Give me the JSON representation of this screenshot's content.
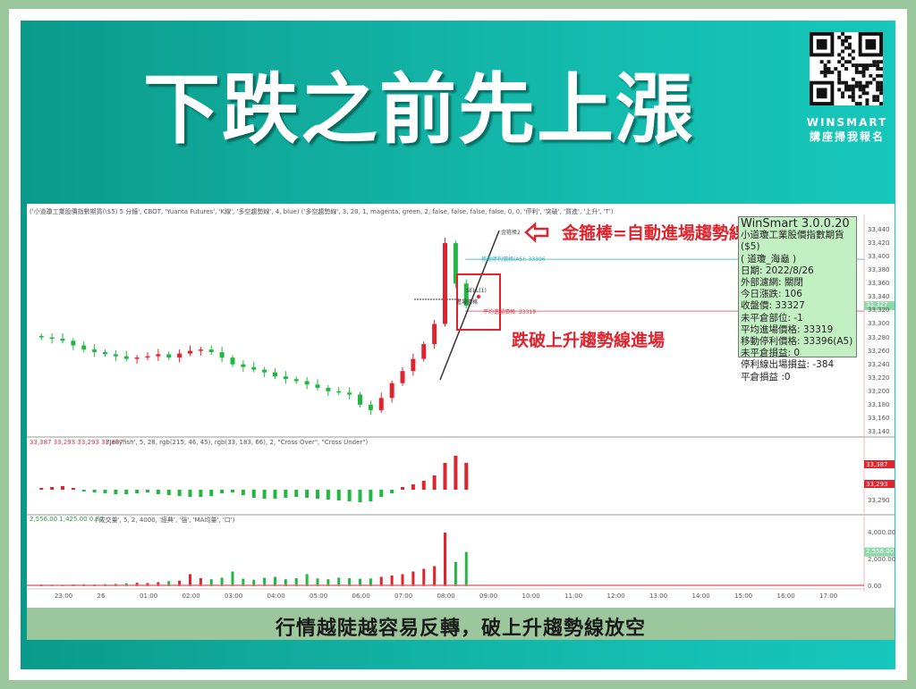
{
  "title": "下跌之前先上漲",
  "brand": {
    "name": "WINSMART",
    "subtitle": "講座掃我報名",
    "qr_icon": "qr-code-icon"
  },
  "caption": "行情越陡越容易反轉，破上升趨勢線放空",
  "colors": {
    "teal": "#14bdb0",
    "frame": "#9cc79c",
    "bull": "#e0232c",
    "bear": "#21b742",
    "annotation": "#e0232c",
    "info_bg": "#c3f0c3"
  },
  "annotations": {
    "trendline": "金箍棒=自動進場趨勢線",
    "entry": "跌破上升趨勢線進場",
    "arrow_icon": "left-arrow-icon"
  },
  "chart_labels": {
    "trend_tag": "金箍棒2",
    "trail_stop": "移動停利價格(A5): 33396",
    "sell": "SELL(1)",
    "entry_price": "進場價格",
    "avg_entry": "平均進場價格: 33319"
  },
  "toolbar_text": "('小道瓊工業股價指數期貨(\\$5) 5 分鐘', CBOT, 'Yuanta Futures', 'K線', '多空趨勢線', 4, blue) ('多空趨勢線', 3, 20, 1, magenta, green, 2, false, false, false, false, 0, 0, '停利', '突破', '買進', '上升', 'T')",
  "info_box": {
    "lines": [
      "WinSmart 3.0.0.20",
      "小道瓊工業股價指數期貨($5)",
      "( 道瓊_海龜 )",
      "日期: 2022/8/26",
      "外部濾網: 關閉",
      "今日漲跌: 106",
      "收盤價: 33327",
      "未平倉部位: -1",
      "平均進場價格: 33319",
      "移動停利價格: 33396(A5)",
      "未平倉損益: 0",
      "停利線出場損益: -384",
      "平倉損益 :0"
    ]
  },
  "chart_data": [
    {
      "type": "candlestick",
      "title": "",
      "x": [
        "22:30",
        "22:45",
        "23:00",
        "23:15",
        "23:30",
        "23:45",
        "00:00",
        "00:15",
        "00:30",
        "00:45",
        "01:00",
        "01:15",
        "01:30",
        "01:45",
        "02:00",
        "02:15",
        "02:30",
        "02:45",
        "03:00",
        "03:15",
        "03:30",
        "03:45",
        "04:00",
        "04:15",
        "04:30",
        "04:45",
        "05:00",
        "05:15",
        "05:30",
        "05:45",
        "06:00",
        "06:15",
        "06:30",
        "06:45",
        "07:00",
        "07:15",
        "07:30",
        "07:45",
        "08:00",
        "08:15",
        "08:30"
      ],
      "close": [
        33280,
        33278,
        33275,
        33268,
        33262,
        33258,
        33255,
        33252,
        33248,
        33250,
        33252,
        33255,
        33250,
        33256,
        33260,
        33262,
        33258,
        33250,
        33240,
        33236,
        33232,
        33228,
        33222,
        33218,
        33215,
        33210,
        33205,
        33200,
        33198,
        33195,
        33180,
        33172,
        33190,
        33212,
        33230,
        33248,
        33270,
        33300,
        33420,
        33360,
        33327
      ],
      "x_tick_labels": [
        "23:00",
        "26",
        "01:00",
        "02:00",
        "03:00",
        "04:00",
        "05:00",
        "06:00",
        "07:00",
        "08:00",
        "09:00",
        "10:00",
        "11:00",
        "12:00",
        "13:00",
        "14:00",
        "15:00",
        "16:00",
        "17:00"
      ],
      "y_tick_labels": [
        "33,440",
        "33,420",
        "33,400",
        "33,380",
        "33,360",
        "33,340",
        "33,320",
        "33,300",
        "33,280",
        "33,260",
        "33,240",
        "33,220",
        "33,200",
        "33,180",
        "33,160",
        "33,140"
      ],
      "ylim": [
        33140,
        33450
      ],
      "current_price_tag": "33,327",
      "reference_lines": {
        "trail_stop": 33396,
        "avg_entry": 33319
      },
      "grid": false
    },
    {
      "type": "bar",
      "title": "",
      "header_values": "33,387  33,293  33,293  33,387",
      "params": "('Jellyfish', 5, 28, rgb(215, 46, 45), rgb(33, 183, 66), 2, \"Cross Over\", \"Cross Under\")",
      "values": [
        2,
        3,
        4,
        2,
        -2,
        -3,
        -4,
        -5,
        -5,
        -4,
        -3,
        -5,
        -6,
        -7,
        -8,
        -8,
        -7,
        -4,
        -3,
        -6,
        -9,
        -10,
        -10,
        -9,
        -8,
        -9,
        -10,
        -11,
        -12,
        -13,
        -14,
        -13,
        -8,
        -4,
        3,
        6,
        10,
        16,
        30,
        38,
        30
      ],
      "y_tick_labels": [
        "33,387",
        "33,293",
        "33,290"
      ],
      "grid": false
    },
    {
      "type": "bar",
      "title": "",
      "header_values": "2,556.00  1,425.00  0.80",
      "params": "('成交量', 5, 2, 4000, '經典', '強', 'MA均量', '口')",
      "values": [
        120,
        110,
        100,
        140,
        150,
        130,
        160,
        180,
        220,
        260,
        240,
        300,
        380,
        420,
        900,
        600,
        520,
        640,
        1100,
        560,
        480,
        620,
        700,
        520,
        600,
        900,
        580,
        520,
        640,
        600,
        560,
        580,
        700,
        800,
        900,
        1100,
        1300,
        1500,
        4000,
        1800,
        2556
      ],
      "ylim": [
        0,
        4500
      ],
      "y_tick_labels": [
        "4,000.00",
        "2,000.00",
        "0.00"
      ],
      "current_value_tag": "2,556.00",
      "grid": false
    }
  ]
}
